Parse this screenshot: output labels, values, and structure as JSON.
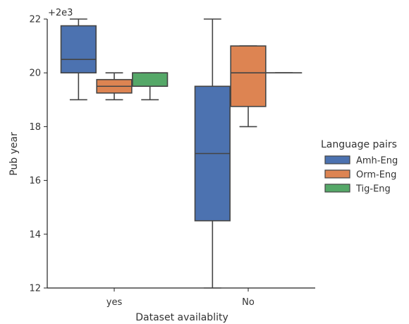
{
  "chart_data": {
    "type": "box",
    "offset_label": "+2e3",
    "xlabel": "Dataset availablity",
    "ylabel": "Pub year",
    "ylim": [
      12,
      22
    ],
    "yticks": [
      12,
      14,
      16,
      18,
      20,
      22
    ],
    "categories": [
      "yes",
      "No"
    ],
    "legend": {
      "title": "Language pairs",
      "placement": "right"
    },
    "series": [
      {
        "name": "Amh-Eng",
        "color": "#4c72b0",
        "boxes": [
          {
            "category": "yes",
            "whisker_low": 19,
            "q1": 20,
            "median": 20.5,
            "q3": 21.75,
            "whisker_high": 22
          },
          {
            "category": "No",
            "whisker_low": 12,
            "q1": 14.5,
            "median": 17,
            "q3": 19.5,
            "whisker_high": 22
          }
        ]
      },
      {
        "name": "Orm-Eng",
        "color": "#dd8452",
        "boxes": [
          {
            "category": "yes",
            "whisker_low": 19,
            "q1": 19.25,
            "median": 19.5,
            "q3": 19.75,
            "whisker_high": 20
          },
          {
            "category": "No",
            "whisker_low": 18,
            "q1": 18.75,
            "median": 20,
            "q3": 21,
            "whisker_high": 21
          }
        ]
      },
      {
        "name": "Tig-Eng",
        "color": "#55a868",
        "boxes": [
          {
            "category": "yes",
            "whisker_low": 19,
            "q1": 19.5,
            "median": 20,
            "q3": 20,
            "whisker_high": 20
          },
          {
            "category": "No",
            "whisker_low": 20,
            "q1": 20,
            "median": 20,
            "q3": 20,
            "whisker_high": 20
          }
        ]
      }
    ]
  }
}
